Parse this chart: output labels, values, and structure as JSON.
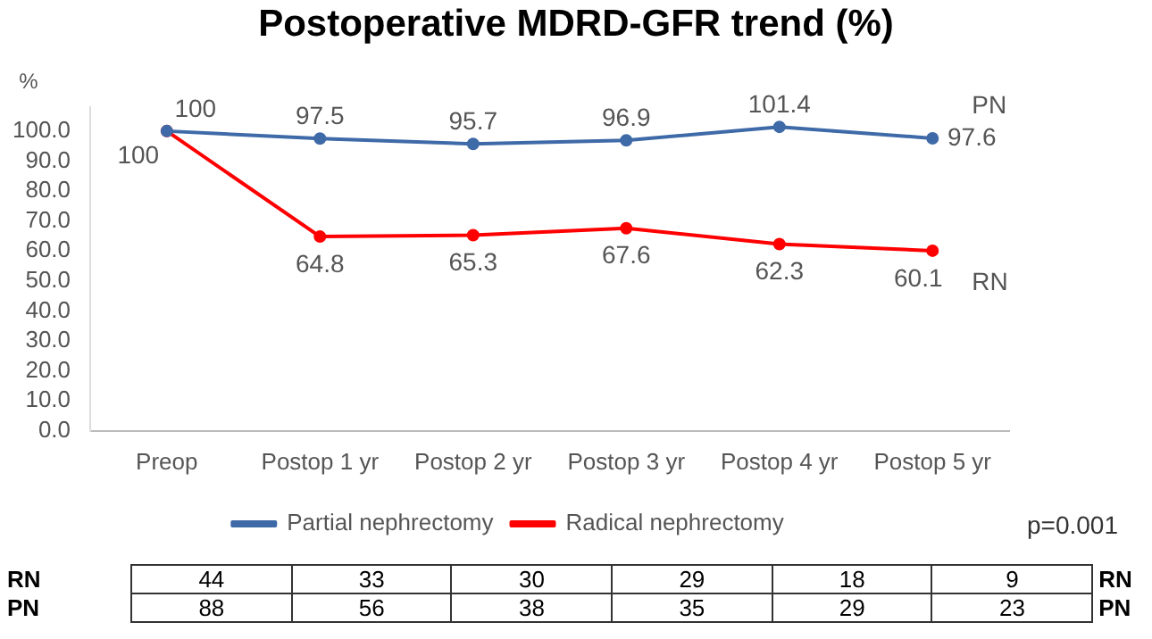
{
  "chart_data": {
    "type": "line",
    "title": "Postoperative MDRD-GFR trend (%)",
    "ylabel": "%",
    "categories": [
      "Preop",
      "Postop 1 yr",
      "Postop 2 yr",
      "Postop 3 yr",
      "Postop 4 yr",
      "Postop 5 yr"
    ],
    "series": [
      {
        "name": "Partial nephrectomy",
        "color": "#3f6aa8",
        "values": [
          100,
          97.5,
          95.7,
          96.9,
          101.4,
          97.6
        ]
      },
      {
        "name": "Radical nephrectomy",
        "color": "#ff0000",
        "values": [
          100,
          64.8,
          65.3,
          67.6,
          62.3,
          60.1
        ]
      }
    ],
    "ylim": [
      0,
      108
    ],
    "yticks": [
      {
        "value": 0,
        "label": "0.0"
      },
      {
        "value": 10,
        "label": "10.0"
      },
      {
        "value": 20,
        "label": "20.0"
      },
      {
        "value": 30,
        "label": "30.0"
      },
      {
        "value": 40,
        "label": "40.0"
      },
      {
        "value": 50,
        "label": "50.0"
      },
      {
        "value": 60,
        "label": "60.0"
      },
      {
        "value": 70,
        "label": "70.0"
      },
      {
        "value": 80,
        "label": "80.0"
      },
      {
        "value": 90,
        "label": "90.0"
      },
      {
        "value": 100,
        "label": "100.0"
      }
    ],
    "grid": false,
    "legend": "bottom",
    "marker": "circle",
    "line_style": "solid",
    "data_labels": true,
    "annotations": [
      {
        "text": "PN",
        "x": "Postop 5 yr",
        "y": 97.6
      },
      {
        "text": "RN",
        "x": "Postop 5 yr",
        "y": 60.1
      },
      "p=0.001",
      "RN",
      "44",
      "33",
      "30",
      "29",
      "18",
      "9",
      "RN",
      "PN",
      "88",
      "56",
      "38",
      "35",
      "29",
      "23",
      "PN"
    ]
  }
}
